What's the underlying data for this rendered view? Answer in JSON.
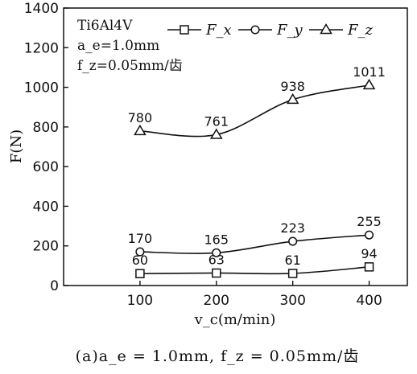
{
  "chart_data": {
    "type": "line",
    "title": "",
    "x_label": "v_c(m/min)",
    "y_label": "F(N)",
    "x": [
      100,
      200,
      300,
      400
    ],
    "xlim": [
      0,
      450
    ],
    "ylim": [
      0,
      1400
    ],
    "x_ticks": [
      100,
      200,
      300,
      400
    ],
    "y_ticks": [
      0,
      200,
      400,
      600,
      800,
      1000,
      1200,
      1400
    ],
    "grid": false,
    "legend_position": "top",
    "series": [
      {
        "name": "F_x",
        "marker": "square",
        "values": [
          60,
          63,
          61,
          94
        ],
        "labels": [
          "60",
          "63",
          "61",
          "94"
        ]
      },
      {
        "name": "F_y",
        "marker": "circle",
        "values": [
          170,
          165,
          223,
          255
        ],
        "labels": [
          "170",
          "165",
          "223",
          "255"
        ]
      },
      {
        "name": "F_z",
        "marker": "triangle",
        "values": [
          780,
          761,
          938,
          1011
        ],
        "labels": [
          "780",
          "761",
          "938",
          "1011"
        ]
      }
    ],
    "annotation_lines": [
      "Ti6Al4V",
      "a_e=1.0mm",
      "f_z=0.05mm/齿"
    ],
    "caption": "(a)a_e = 1.0mm, f_z = 0.05mm/齿"
  }
}
